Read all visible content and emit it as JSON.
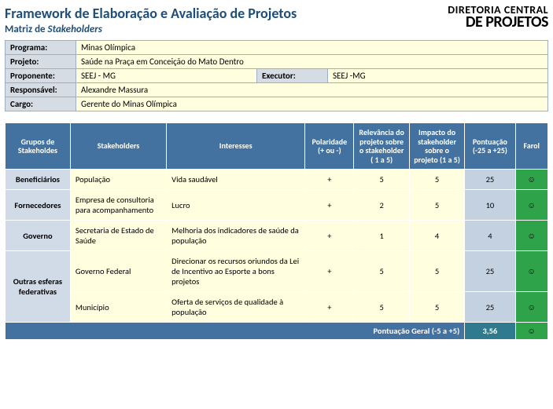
{
  "header": {
    "title": "Framework de Elaboração e Avaliação de Projetos",
    "subtitle_prefix": "Matriz de ",
    "subtitle_italic": "Stakeholders",
    "brand_top": "DIRETORIA CENTRAL",
    "brand_bot": "DE PROJETOS"
  },
  "meta": {
    "programa_l": "Programa:",
    "programa_v": "Minas Olímpica",
    "projeto_l": "Projeto:",
    "projeto_v": "Saúde na Praça em Conceição do Mato Dentro",
    "proponente_l": "Proponente:",
    "proponente_v": "SEEJ - MG",
    "executor_l": "Executor:",
    "executor_v": "SEEJ -MG",
    "responsavel_l": "Responsável:",
    "responsavel_v": "Alexandre Massura",
    "cargo_l": "Cargo:",
    "cargo_v": "Gerente do Minas Olímpica"
  },
  "cols": {
    "c1": "Grupos de Stakeholdes",
    "c2": "Stakeholders",
    "c3": "Interesses",
    "c4": "Polaridade (+ ou -)",
    "c5": "Relevância do projeto sobre o stakeholder ( 1 a 5)",
    "c6": "Impacto do stakeholder sobre o projeto (1 a 5)",
    "c7": "Pontuação (-25 a +25)",
    "c8": "Farol"
  },
  "rows": [
    {
      "grupo": "Beneficiários",
      "stake": "População",
      "interesse": "Vida saudável",
      "pol": "+",
      "rel": "5",
      "imp": "5",
      "score": "25",
      "farol": "☺"
    },
    {
      "grupo": "Fornecedores",
      "stake": "Empresa de consultoria para acompanhamento",
      "interesse": "Lucro",
      "pol": "+",
      "rel": "2",
      "imp": "5",
      "score": "10",
      "farol": "☺"
    },
    {
      "grupo": "Governo",
      "stake": "Secretaria de Estado de Saúde",
      "interesse": "Melhoria dos indicadores de saúde da população",
      "pol": "+",
      "rel": "1",
      "imp": "4",
      "score": "4",
      "farol": "☺"
    },
    {
      "grupo": "Outras esferas federativas",
      "stake": "Governo Federal",
      "interesse": "Direcionar os recursos oriundos da Lei de Incentivo ao Esporte a bons projetos",
      "pol": "+",
      "rel": "5",
      "imp": "5",
      "score": "25",
      "farol": "☺",
      "span": 2
    },
    {
      "stake": "Município",
      "interesse": "Oferta de serviços de qualidade  à população",
      "pol": "+",
      "rel": "5",
      "imp": "5",
      "score": "25",
      "farol": "☺"
    }
  ],
  "footer": {
    "label": "Pontuação Geral (-5 a +5)",
    "score": "3,56",
    "farol": "☺"
  }
}
